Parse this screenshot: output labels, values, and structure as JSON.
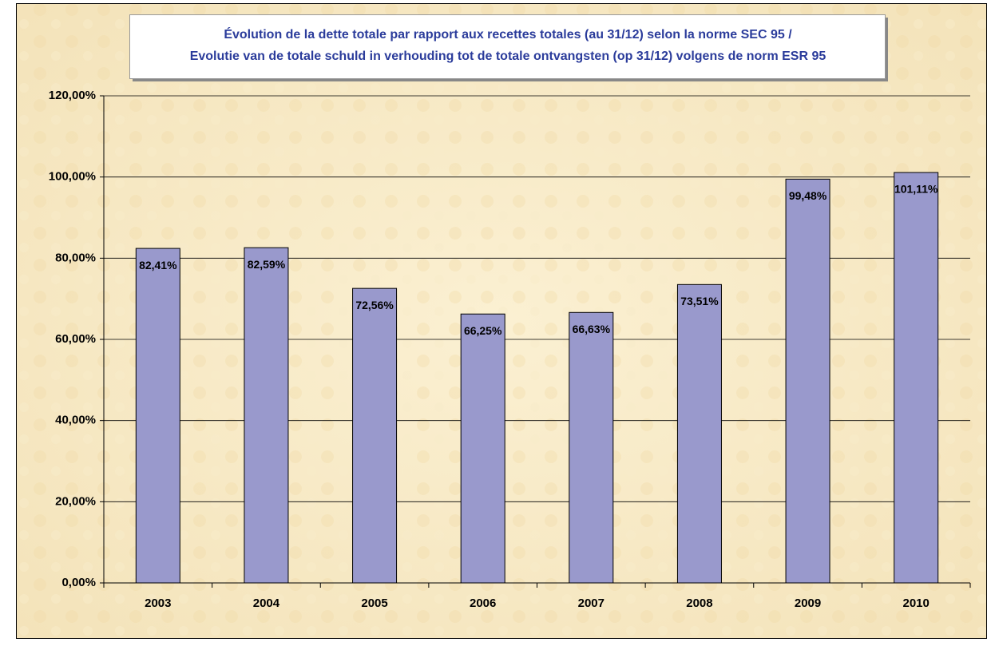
{
  "chart_data": {
    "type": "bar",
    "title": [
      "Évolution de la dette totale par rapport aux recettes totales (au 31/12) selon la norme SEC 95 /",
      "Evolutie van de totale schuld in verhouding tot de totale ontvangsten (op 31/12) volgens de norm ESR 95"
    ],
    "categories": [
      "2003",
      "2004",
      "2005",
      "2006",
      "2007",
      "2008",
      "2009",
      "2010"
    ],
    "values": [
      82.41,
      82.59,
      72.56,
      66.25,
      66.63,
      73.51,
      99.48,
      101.11
    ],
    "value_labels": [
      "82,41%",
      "82,59%",
      "72,56%",
      "66,25%",
      "66,63%",
      "73,51%",
      "99,48%",
      "101,11%"
    ],
    "color": "#9999cc",
    "ylim": [
      0,
      120
    ],
    "yticks": [
      {
        "value": 0,
        "label": "0,00%"
      },
      {
        "value": 20,
        "label": "20,00%"
      },
      {
        "value": 40,
        "label": "40,00%"
      },
      {
        "value": 60,
        "label": "60,00%"
      },
      {
        "value": 80,
        "label": "80,00%"
      },
      {
        "value": 100,
        "label": "100,00%"
      },
      {
        "value": 120,
        "label": "120,00%"
      }
    ],
    "grid": true
  }
}
